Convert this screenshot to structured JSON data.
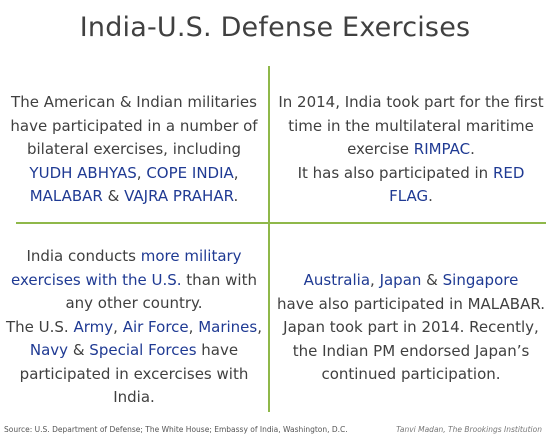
{
  "title": "India-U.S. Defense Exercises",
  "q1": {
    "t1": "The American & Indian militaries have participated in a number of bilateral exercises, including ",
    "e1": "YUDH ABHYAS",
    "t2": ", ",
    "e2": "COPE INDIA",
    "t3": ", ",
    "e3": "MALABAR",
    "t4": " & ",
    "e4": "VAJRA PRAHAR",
    "t5": "."
  },
  "q2": {
    "t1": "In 2014, India took part for the first time in the multilateral maritime exercise ",
    "e1": "RIMPAC",
    "t2": ".",
    "t3": "It has also participated in ",
    "e2": "RED FLAG",
    "t4": "."
  },
  "q3": {
    "t1": "India conducts ",
    "e1": "more military exercises with the U.S.",
    "t2": " than with any other country.",
    "t3": "The U.S. ",
    "e2": "Army",
    "t4": ", ",
    "e3": "Air Force",
    "t5": ", ",
    "e4": "Marines",
    "t6": ", ",
    "e5": "Navy",
    "t7": " & ",
    "e6": "Special Forces",
    "t8": " have participated in excercises with India."
  },
  "q4": {
    "e1": "Australia",
    "t1": ", ",
    "e2": "Japan",
    "t2": " & ",
    "e3": "Singapore",
    "t3": "have also participated in MALABAR. Japan took part in 2014. Recently, the Indian PM endorsed Japan’s continued participation."
  },
  "footer": {
    "source": "Source: U.S. Department of Defense; The White House; Embassy of India, Washington, D.C.",
    "credit": "Tanvi Madan, The Brookings Institution"
  }
}
